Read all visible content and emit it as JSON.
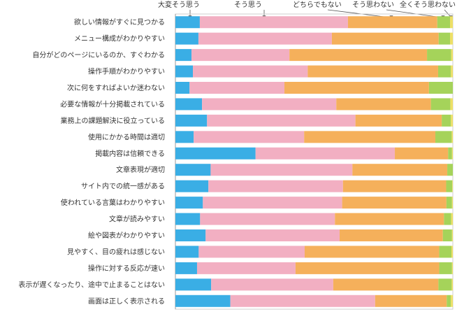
{
  "chart_data": {
    "type": "bar",
    "stacked": true,
    "orientation": "horizontal",
    "normalized_percent": true,
    "xlim": [
      0,
      100
    ],
    "legend_position": "top",
    "categories": [
      "欲しい情報がすぐに見つかる",
      "メニュー構成がわかりやすい",
      "自分がどのページにいるのか、すぐわかる",
      "操作手順がわかりやすい",
      "次に何をすればよいか迷わない",
      "必要な情報が十分掲載されている",
      "業務上の課題解決に役立っている",
      "使用にかかる時間は適切",
      "掲載内容は信頼できる",
      "文章表現が適切",
      "サイト内での統一感がある",
      "使われている言葉はわかりやすい",
      "文章が読みやすい",
      "絵や図表がわかりやすい",
      "見やすく、目の疲れは感じない",
      "操作に対する反応が速い",
      "表示が遅くなったり、途中で止まることはない",
      "画面は正しく表示される"
    ],
    "series": [
      {
        "name": "大変そう思う",
        "color": "#3aaee5",
        "values": [
          8.8,
          8.3,
          5.8,
          6.3,
          5.1,
          9.6,
          11.4,
          6.6,
          28.9,
          12.7,
          11.9,
          9.9,
          8.9,
          10.9,
          8.4,
          7.8,
          12.9,
          19.8
        ]
      },
      {
        "name": "そう思う",
        "color": "#f2afc2",
        "values": [
          53.4,
          48.1,
          35.3,
          41.4,
          34.2,
          48.4,
          53.5,
          39.8,
          50.2,
          51.1,
          48.5,
          50.2,
          48.6,
          48.3,
          38.2,
          35.5,
          44.0,
          52.2
        ]
      },
      {
        "name": "どちらでもない",
        "color": "#f5b05b",
        "values": [
          32.2,
          38.5,
          49.6,
          47.0,
          52.1,
          34.1,
          31.1,
          47.3,
          19.2,
          34.2,
          37.2,
          37.6,
          39.3,
          37.2,
          48.5,
          51.8,
          37.9,
          25.8
        ]
      },
      {
        "name": "そう思わない",
        "color": "#a5d35a",
        "values": [
          4.6,
          4.1,
          8.7,
          4.6,
          8.6,
          7.0,
          3.3,
          5.9,
          1.4,
          2.0,
          2.2,
          2.0,
          2.6,
          3.3,
          4.4,
          4.6,
          4.8,
          1.5
        ]
      },
      {
        "name": "全くそう思わない",
        "color": "#ede066",
        "values": [
          1.0,
          1.0,
          0.6,
          0.7,
          0.0,
          0.9,
          0.7,
          0.4,
          0.3,
          0.0,
          0.2,
          0.3,
          0.6,
          0.3,
          0.5,
          0.3,
          0.4,
          0.7
        ]
      }
    ]
  }
}
